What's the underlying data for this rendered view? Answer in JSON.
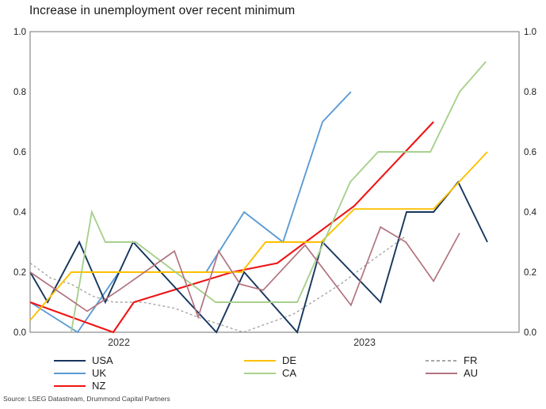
{
  "title": "Increase in unemployment over recent minimum",
  "source": "Source: LSEG Datastream, Drummond Capital Partners",
  "chart_data": {
    "type": "line",
    "title": "Increase in unemployment over recent minimum",
    "x_axis": {
      "labels": [
        "2022",
        "2023"
      ],
      "label_positions": [
        2022.0,
        2023.0
      ],
      "range": [
        2021.639,
        2023.629
      ]
    },
    "y_axis": {
      "ticks": [
        0.0,
        0.2,
        0.4,
        0.6,
        0.8,
        1.0
      ],
      "range": [
        0.0,
        1.0
      ],
      "sides": "both"
    },
    "grid": false,
    "legend_position": "bottom",
    "draw_order": [
      "FR",
      "UK",
      "NZ",
      "USA",
      "DE",
      "CA",
      "AU"
    ],
    "legend_columns": [
      [
        "USA",
        "UK",
        "NZ"
      ],
      [
        "DE",
        "CA"
      ],
      [
        "FR",
        "AU"
      ]
    ],
    "series": [
      {
        "name": "USA",
        "color": "#17365d",
        "dash": null,
        "width": 1.9,
        "points": [
          [
            2021.639,
            0.2
          ],
          [
            2021.71,
            0.1
          ],
          [
            2021.839,
            0.3
          ],
          [
            2021.945,
            0.1
          ],
          [
            2022.058,
            0.3
          ],
          [
            2022.397,
            0.0
          ],
          [
            2022.51,
            0.2
          ],
          [
            2022.726,
            0.0
          ],
          [
            2022.829,
            0.3
          ],
          [
            2023.065,
            0.1
          ],
          [
            2023.171,
            0.4
          ],
          [
            2023.281,
            0.4
          ],
          [
            2023.381,
            0.5
          ],
          [
            2023.5,
            0.3
          ]
        ]
      },
      {
        "name": "UK",
        "color": "#5b9bd5",
        "dash": null,
        "width": 1.9,
        "points": [
          [
            2021.639,
            0.1
          ],
          [
            2021.832,
            0.0
          ],
          [
            2022.0,
            0.2
          ],
          [
            2022.355,
            0.2
          ],
          [
            2022.51,
            0.4
          ],
          [
            2022.668,
            0.3
          ],
          [
            2022.829,
            0.7
          ],
          [
            2022.945,
            0.8
          ]
        ]
      },
      {
        "name": "NZ",
        "color": "#f01414",
        "dash": null,
        "width": 2.1,
        "points": [
          [
            2021.639,
            0.1
          ],
          [
            2021.977,
            0.0
          ],
          [
            2022.061,
            0.1
          ],
          [
            2022.461,
            0.2
          ],
          [
            2022.645,
            0.23
          ],
          [
            2022.958,
            0.42
          ],
          [
            2023.281,
            0.7
          ]
        ]
      },
      {
        "name": "DE",
        "color": "#ffc000",
        "dash": null,
        "width": 1.9,
        "points": [
          [
            2021.639,
            0.04
          ],
          [
            2021.806,
            0.2
          ],
          [
            2022.5,
            0.2
          ],
          [
            2022.597,
            0.3
          ],
          [
            2022.823,
            0.3
          ],
          [
            2022.958,
            0.41
          ],
          [
            2023.281,
            0.41
          ],
          [
            2023.5,
            0.6
          ]
        ]
      },
      {
        "name": "CA",
        "color": "#a8d08d",
        "dash": null,
        "width": 1.9,
        "points": [
          [
            2021.806,
            0.0
          ],
          [
            2021.89,
            0.4
          ],
          [
            2021.945,
            0.3
          ],
          [
            2022.068,
            0.3
          ],
          [
            2022.394,
            0.1
          ],
          [
            2022.726,
            0.1
          ],
          [
            2022.942,
            0.5
          ],
          [
            2023.055,
            0.6
          ],
          [
            2023.268,
            0.6
          ],
          [
            2023.387,
            0.8
          ],
          [
            2023.494,
            0.9
          ]
        ]
      },
      {
        "name": "FR",
        "color": "#a6a6a6",
        "dash": "3,3",
        "width": 1.4,
        "points": [
          [
            2021.639,
            0.23
          ],
          [
            2021.723,
            0.18
          ],
          [
            2021.806,
            0.16
          ],
          [
            2021.894,
            0.12
          ],
          [
            2021.977,
            0.1
          ],
          [
            2022.097,
            0.1
          ],
          [
            2022.226,
            0.08
          ],
          [
            2022.323,
            0.05
          ],
          [
            2022.506,
            0.0
          ],
          [
            2022.71,
            0.06
          ],
          [
            2022.903,
            0.16
          ],
          [
            2023.032,
            0.24
          ],
          [
            2023.168,
            0.32
          ]
        ]
      },
      {
        "name": "AU",
        "color": "#b2737f",
        "dash": null,
        "width": 1.7,
        "points": [
          [
            2021.639,
            0.2
          ],
          [
            2021.871,
            0.07
          ],
          [
            2022.0,
            0.14
          ],
          [
            2022.226,
            0.27
          ],
          [
            2022.323,
            0.05
          ],
          [
            2022.406,
            0.27
          ],
          [
            2022.494,
            0.16
          ],
          [
            2022.587,
            0.14
          ],
          [
            2022.758,
            0.29
          ],
          [
            2022.945,
            0.09
          ],
          [
            2023.065,
            0.35
          ],
          [
            2023.168,
            0.3
          ],
          [
            2023.281,
            0.17
          ],
          [
            2023.387,
            0.33
          ]
        ]
      }
    ]
  }
}
